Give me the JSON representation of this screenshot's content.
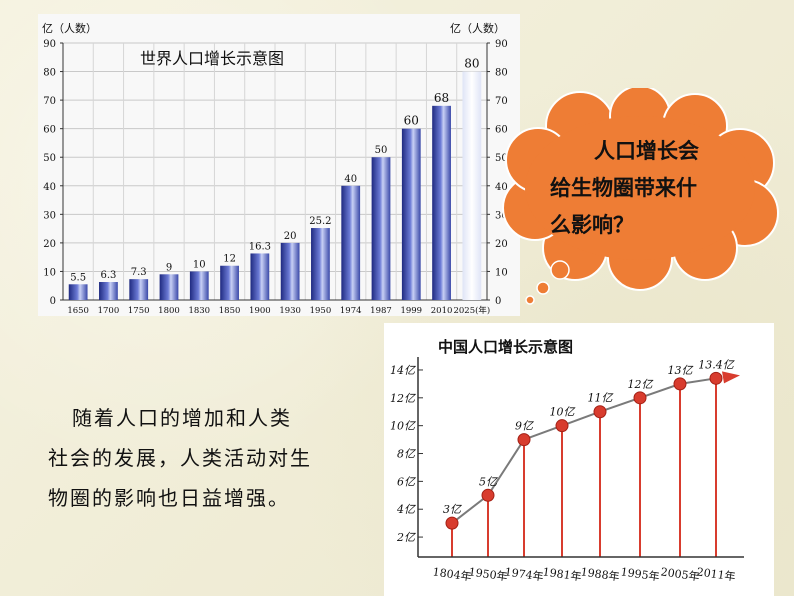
{
  "colors": {
    "bar_blue": "#3948a8",
    "bubble_orange": "#ee7d35",
    "china_line": "#7a7a7a",
    "china_point": "#d83c2e",
    "china_title": "#111111"
  },
  "chart_data": [
    {
      "type": "bar",
      "title": "世界人口增长示意图",
      "ylabel_left": "亿（人数）",
      "ylabel_right": "亿（人数）",
      "categories": [
        "1650",
        "1700",
        "1750",
        "1800",
        "1830",
        "1850",
        "1900",
        "1930",
        "1950",
        "1974",
        "1987",
        "1999",
        "2010",
        "2025"
      ],
      "x_tick_labels": [
        "1650",
        "1700",
        "1750",
        "1800",
        "1830",
        "1850",
        "1900",
        "1930",
        "1950",
        "1974",
        "1987",
        "1999",
        "2010",
        "2025(年)"
      ],
      "values": [
        5.5,
        6.3,
        7.3,
        9,
        10,
        12,
        16.3,
        20,
        25.2,
        40,
        50,
        60,
        68,
        80
      ],
      "data_labels": [
        "5.5",
        "6.3",
        "7.3",
        "9",
        "10",
        "12",
        "16.3",
        "20",
        "25.2",
        "40",
        "50",
        "60",
        "68",
        "80"
      ],
      "ylim": [
        0,
        90
      ],
      "yticks": [
        0,
        10,
        20,
        30,
        40,
        50,
        60,
        70,
        80,
        90
      ],
      "grid": true
    },
    {
      "type": "line",
      "title": "中国人口增长示意图",
      "x_tick_labels": [
        "1804年",
        "1950年",
        "1974年",
        "1981年",
        "1988年",
        "1995年",
        "2005年",
        "2011年"
      ],
      "values": [
        3,
        5,
        9,
        10,
        11,
        12,
        13,
        13.4
      ],
      "data_labels": [
        "3亿",
        "5亿",
        "9亿",
        "10亿",
        "11亿",
        "12亿",
        "13亿",
        "13.4亿"
      ],
      "ylim": [
        1,
        14.5
      ],
      "yticks": [
        2,
        4,
        6,
        8,
        10,
        12,
        14
      ],
      "ytick_labels": [
        "2亿",
        "4亿",
        "6亿",
        "8亿",
        "10亿",
        "12亿",
        "14亿"
      ]
    }
  ],
  "bubble": {
    "line1": "人口增长会",
    "line2": "给生物圈带来什",
    "line3": "么影响？"
  },
  "paragraph": {
    "line1": "随着人口的增加和人类",
    "line2": "社会的发展，人类活动对生",
    "line3": "物圈的影响也日益增强。"
  }
}
